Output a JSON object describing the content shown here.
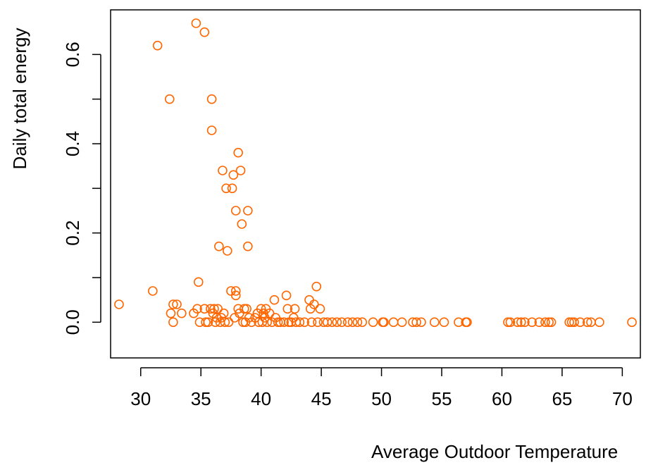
{
  "chart_data": {
    "type": "scatter",
    "title": "",
    "xlabel": "Average Outdoor Temperature",
    "ylabel": "Daily total energy",
    "xlim": [
      27.5,
      71.5
    ],
    "ylim": [
      -0.08,
      0.7
    ],
    "x_ticks": [
      30,
      35,
      40,
      45,
      50,
      55,
      60,
      65,
      70
    ],
    "y_ticks": [
      0.0,
      0.1,
      0.2,
      0.3,
      0.4,
      0.5,
      0.6
    ],
    "y_tick_labels": [
      "0.0",
      "",
      "0.2",
      "",
      "0.4",
      "",
      "0.6"
    ],
    "grid": false,
    "legend": "none",
    "marker": "open-circle",
    "color": "#ff6600",
    "series": [
      {
        "points": [
          [
            28.2,
            0.04
          ],
          [
            31.0,
            0.07
          ],
          [
            31.4,
            0.62
          ],
          [
            32.4,
            0.5
          ],
          [
            32.5,
            0.02
          ],
          [
            32.7,
            0.04
          ],
          [
            32.7,
            0.0
          ],
          [
            33.0,
            0.04
          ],
          [
            33.4,
            0.02
          ],
          [
            34.4,
            0.02
          ],
          [
            34.6,
            0.67
          ],
          [
            34.7,
            0.03
          ],
          [
            34.8,
            0.09
          ],
          [
            34.9,
            0.0
          ],
          [
            35.3,
            0.65
          ],
          [
            35.3,
            0.03
          ],
          [
            35.4,
            0.0
          ],
          [
            35.6,
            0.0
          ],
          [
            35.8,
            0.03
          ],
          [
            35.9,
            0.5
          ],
          [
            35.9,
            0.43
          ],
          [
            36.0,
            0.02
          ],
          [
            36.1,
            0.03
          ],
          [
            36.2,
            0.0
          ],
          [
            36.3,
            0.01
          ],
          [
            36.4,
            0.03
          ],
          [
            36.5,
            0.17
          ],
          [
            36.6,
            0.0
          ],
          [
            36.7,
            0.01
          ],
          [
            36.8,
            0.34
          ],
          [
            36.9,
            0.02
          ],
          [
            37.0,
            0.0
          ],
          [
            37.1,
            0.3
          ],
          [
            37.2,
            0.16
          ],
          [
            37.3,
            0.0
          ],
          [
            37.5,
            0.07
          ],
          [
            37.6,
            0.3
          ],
          [
            37.7,
            0.33
          ],
          [
            37.8,
            0.01
          ],
          [
            37.9,
            0.25
          ],
          [
            37.9,
            0.07
          ],
          [
            37.9,
            0.06
          ],
          [
            38.1,
            0.38
          ],
          [
            38.1,
            0.03
          ],
          [
            38.2,
            0.02
          ],
          [
            38.3,
            0.34
          ],
          [
            38.4,
            0.22
          ],
          [
            38.5,
            0.0
          ],
          [
            38.6,
            0.03
          ],
          [
            38.7,
            0.0
          ],
          [
            38.8,
            0.03
          ],
          [
            38.9,
            0.17
          ],
          [
            38.9,
            0.25
          ],
          [
            39.0,
            0.01
          ],
          [
            39.2,
            0.0
          ],
          [
            39.5,
            0.01
          ],
          [
            39.7,
            0.02
          ],
          [
            39.8,
            0.0
          ],
          [
            40.0,
            0.03
          ],
          [
            40.1,
            0.0
          ],
          [
            40.2,
            0.02
          ],
          [
            40.3,
            0.01
          ],
          [
            40.4,
            0.03
          ],
          [
            40.5,
            0.0
          ],
          [
            40.7,
            0.02
          ],
          [
            40.9,
            0.0
          ],
          [
            41.1,
            0.05
          ],
          [
            41.2,
            0.01
          ],
          [
            41.4,
            0.0
          ],
          [
            41.6,
            0.0
          ],
          [
            41.9,
            0.0
          ],
          [
            42.1,
            0.06
          ],
          [
            42.2,
            0.03
          ],
          [
            42.3,
            0.0
          ],
          [
            42.5,
            0.0
          ],
          [
            42.7,
            0.01
          ],
          [
            42.8,
            0.03
          ],
          [
            42.9,
            0.0
          ],
          [
            43.2,
            0.0
          ],
          [
            43.6,
            0.0
          ],
          [
            44.0,
            0.05
          ],
          [
            44.1,
            0.03
          ],
          [
            44.2,
            0.0
          ],
          [
            44.4,
            0.04
          ],
          [
            44.6,
            0.08
          ],
          [
            44.7,
            0.0
          ],
          [
            44.9,
            0.03
          ],
          [
            45.2,
            0.0
          ],
          [
            45.5,
            0.0
          ],
          [
            45.9,
            0.0
          ],
          [
            46.3,
            0.0
          ],
          [
            46.7,
            0.0
          ],
          [
            47.2,
            0.0
          ],
          [
            47.6,
            0.0
          ],
          [
            48.0,
            0.0
          ],
          [
            48.4,
            0.0
          ],
          [
            49.3,
            0.0
          ],
          [
            50.1,
            0.0
          ],
          [
            50.2,
            0.0
          ],
          [
            51.0,
            0.0
          ],
          [
            51.7,
            0.0
          ],
          [
            52.6,
            0.0
          ],
          [
            52.9,
            0.0
          ],
          [
            53.3,
            0.0
          ],
          [
            54.4,
            0.0
          ],
          [
            55.2,
            0.0
          ],
          [
            56.4,
            0.0
          ],
          [
            57.0,
            0.0
          ],
          [
            57.1,
            0.0
          ],
          [
            60.5,
            0.0
          ],
          [
            60.7,
            0.0
          ],
          [
            61.3,
            0.0
          ],
          [
            61.6,
            0.0
          ],
          [
            61.9,
            0.0
          ],
          [
            62.5,
            0.0
          ],
          [
            63.1,
            0.0
          ],
          [
            63.6,
            0.0
          ],
          [
            63.9,
            0.0
          ],
          [
            64.1,
            0.0
          ],
          [
            65.6,
            0.0
          ],
          [
            65.8,
            0.0
          ],
          [
            66.0,
            0.0
          ],
          [
            66.5,
            0.0
          ],
          [
            67.1,
            0.0
          ],
          [
            67.4,
            0.0
          ],
          [
            68.1,
            0.0
          ],
          [
            70.8,
            0.0
          ]
        ]
      }
    ]
  }
}
